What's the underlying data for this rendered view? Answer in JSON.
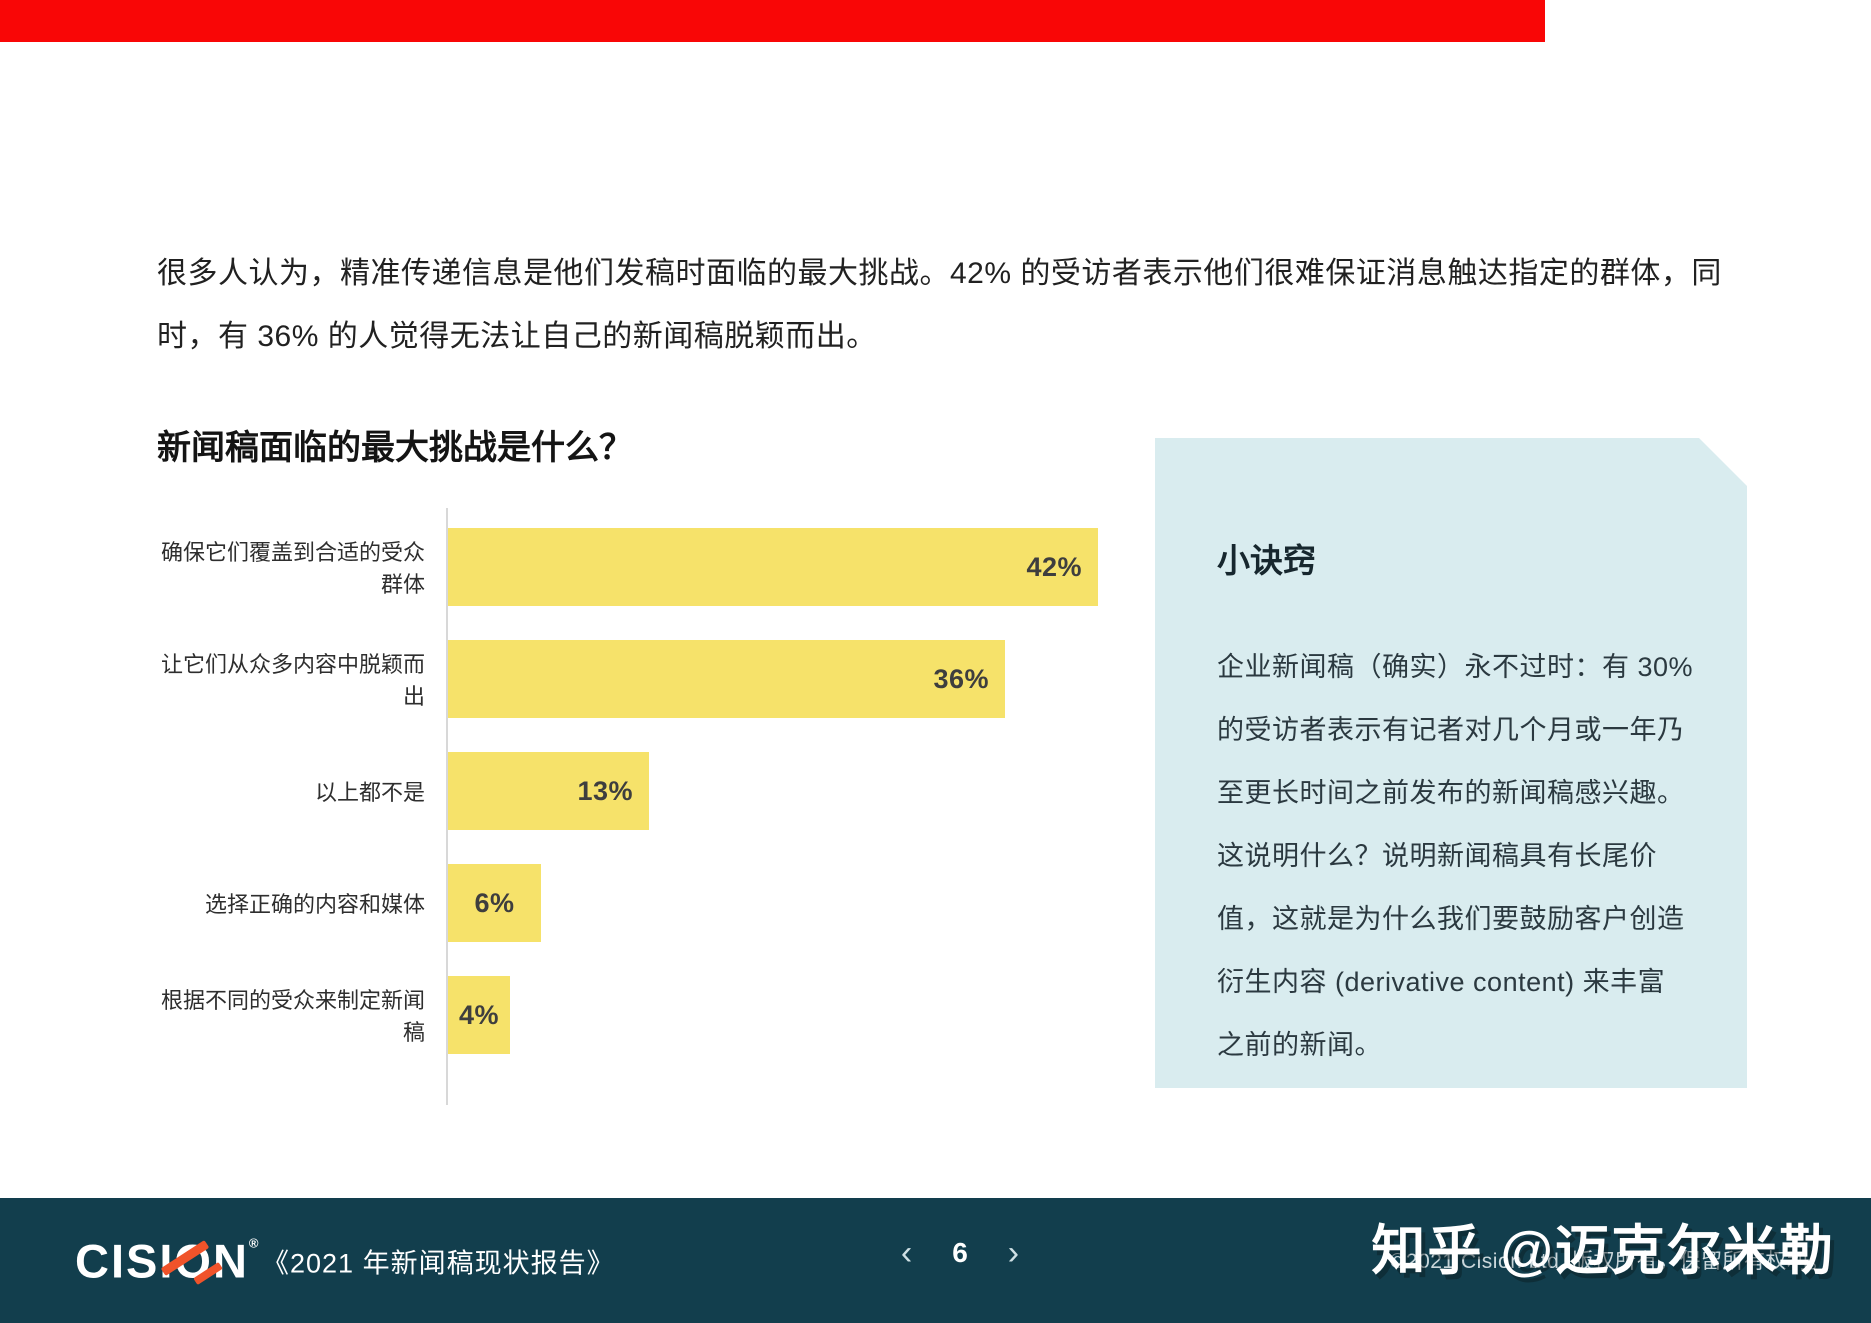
{
  "colors": {
    "progress_red": "#F90606",
    "bar_yellow": "#F6E26A",
    "tip_background": "#D9ECEF",
    "footer_background": "#123E4D",
    "logo_orange": "#F0532A"
  },
  "intro": {
    "text": "很多人认为，精准传递信息是他们发稿时面临的最大挑战。42% 的受访者表示他们很难保证消息触达指定的群体，同时，有 36% 的人觉得无法让自己的新闻稿脱颖而出。"
  },
  "chart_data": {
    "type": "bar",
    "orientation": "horizontal",
    "title": "新闻稿面临的最大挑战是什么？",
    "categories": [
      "确保它们覆盖到合适的受众群体",
      "让它们从众多内容中脱颖而出",
      "以上都不是",
      "选择正确的内容和媒体",
      "根据不同的受众来制定新闻稿"
    ],
    "values": [
      42,
      36,
      13,
      6,
      4
    ],
    "value_labels": [
      "42%",
      "36%",
      "13%",
      "6%",
      "4%"
    ],
    "xlabel": "",
    "ylabel": "",
    "xlim": [
      0,
      45
    ],
    "grid": false,
    "legend": "none",
    "bar_color": "#F6E26A"
  },
  "tip_box": {
    "title": "小诀窍",
    "body": "企业新闻稿（确实）永不过时：有 30%\n的受访者表示有记者对几个月或一年乃\n至更长时间之前发布的新闻稿感兴趣。\n这说明什么？说明新闻稿具有长尾价\n值，这就是为什么我们要鼓励客户创造\n衍生内容 (derivative content) 来丰富\n之前的新闻。"
  },
  "footer": {
    "logo_text": "CISION",
    "logo_reg": "®",
    "report_title": "《2021 年新闻稿现状报告》",
    "pagination": {
      "prev_icon": "‹",
      "page": "6",
      "next_icon": "›"
    },
    "copyright": "©2021 Cision Ltd. 版权所有，保留所有权利。",
    "watermark": "知乎 @迈克尔米勒"
  }
}
